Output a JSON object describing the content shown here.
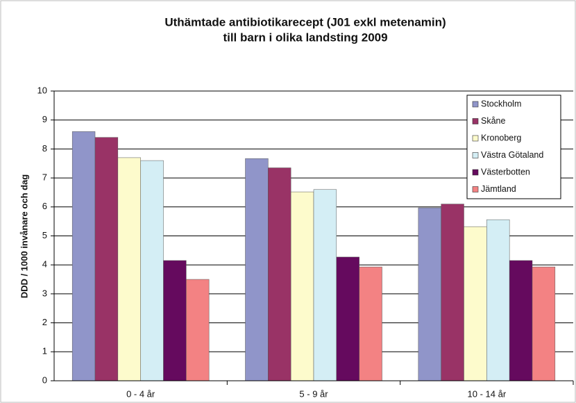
{
  "chart_data": {
    "type": "bar",
    "title": [
      "Uthämtade antibiotikarecept (J01 exkl metenamin)",
      "till barn i olika landsting 2009"
    ],
    "y_label": "DDD / 1000 invånare och dag",
    "categories": [
      "0 - 4 år",
      "5 - 9 år",
      "10 - 14 år"
    ],
    "series": [
      {
        "name": "Stockholm",
        "color": "#9095c9",
        "values": [
          8.6,
          7.67,
          5.97
        ]
      },
      {
        "name": "Skåne",
        "color": "#993366",
        "values": [
          8.4,
          7.35,
          6.1
        ]
      },
      {
        "name": "Kronoberg",
        "color": "#fdfbcc",
        "values": [
          7.7,
          6.52,
          5.32
        ]
      },
      {
        "name": "Västra Götaland",
        "color": "#d4eef5",
        "values": [
          7.6,
          6.6,
          5.56
        ]
      },
      {
        "name": "Västerbotten",
        "color": "#650a5e",
        "values": [
          4.15,
          4.27,
          4.15
        ]
      },
      {
        "name": "Jämtland",
        "color": "#f38283",
        "values": [
          3.5,
          3.93,
          3.93
        ]
      }
    ],
    "ylim": [
      0,
      10
    ],
    "yticks": [
      0,
      1,
      2,
      3,
      4,
      5,
      6,
      7,
      8,
      9,
      10
    ],
    "grid": true,
    "legend": "top-right"
  }
}
